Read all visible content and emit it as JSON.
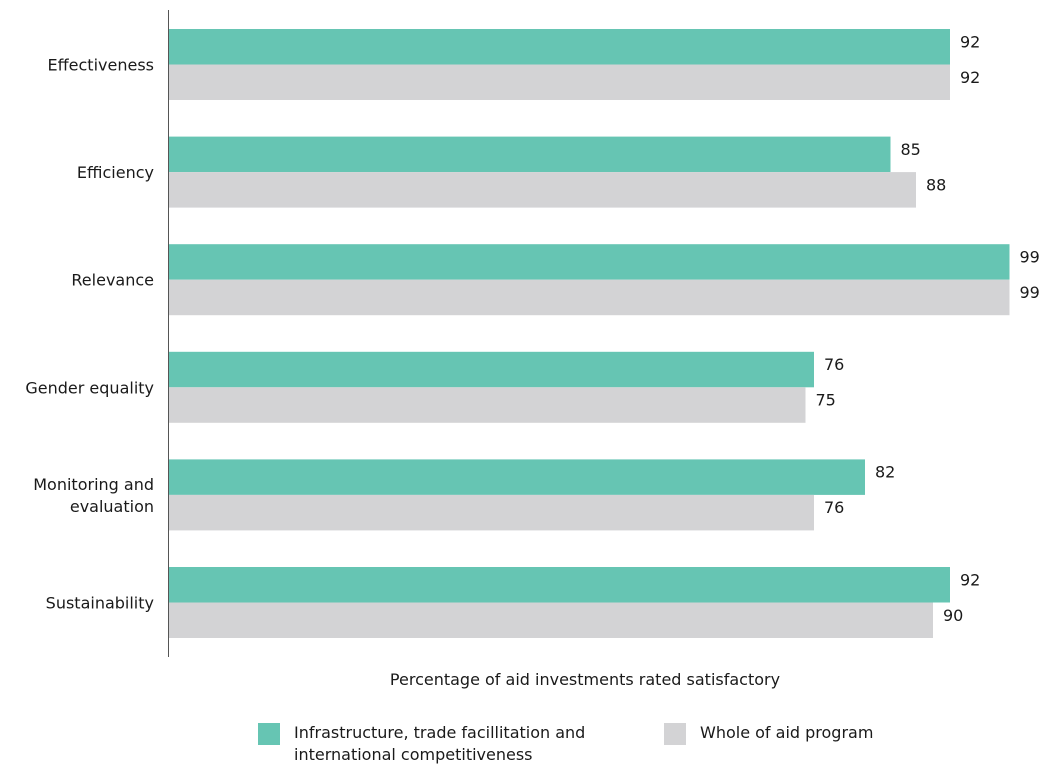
{
  "chart_data": {
    "type": "bar",
    "orientation": "horizontal",
    "categories": [
      "Effectiveness",
      "Efficiency",
      "Relevance",
      "Gender equality",
      "Monitoring and\nevaluation",
      "Sustainability"
    ],
    "series": [
      {
        "name": "Infrastructure, trade facillitation and\n international competitiveness",
        "values": [
          92,
          85,
          99,
          76,
          82,
          92
        ],
        "color": "#66c5b3"
      },
      {
        "name": "Whole of aid program",
        "values": [
          92,
          88,
          99,
          75,
          76,
          90
        ],
        "color": "#d3d3d5"
      }
    ],
    "title": "",
    "xlabel": "Percentage of aid investments rated satisfactory",
    "ylabel": "",
    "xlim": [
      0,
      100
    ],
    "grid": false,
    "legend": "bottom"
  }
}
